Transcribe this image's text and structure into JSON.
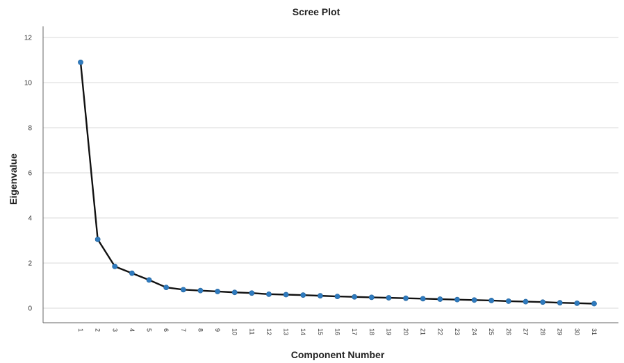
{
  "chart_data": {
    "type": "line",
    "title": "Scree Plot",
    "xlabel": "Component Number",
    "ylabel": "Eigenvalue",
    "x": [
      1,
      2,
      3,
      4,
      5,
      6,
      7,
      8,
      9,
      10,
      11,
      12,
      13,
      14,
      15,
      16,
      17,
      18,
      19,
      20,
      21,
      22,
      23,
      24,
      25,
      26,
      27,
      28,
      29,
      30,
      31
    ],
    "categories": [
      "1",
      "2",
      "3",
      "4",
      "5",
      "6",
      "7",
      "8",
      "9",
      "10",
      "11",
      "12",
      "13",
      "14",
      "15",
      "16",
      "17",
      "18",
      "19",
      "20",
      "21",
      "22",
      "23",
      "24",
      "25",
      "26",
      "27",
      "28",
      "29",
      "30",
      "31"
    ],
    "series": [
      {
        "values": [
          10.9,
          3.05,
          1.85,
          1.55,
          1.25,
          0.92,
          0.82,
          0.78,
          0.74,
          0.7,
          0.67,
          0.62,
          0.6,
          0.58,
          0.55,
          0.52,
          0.5,
          0.48,
          0.46,
          0.44,
          0.42,
          0.4,
          0.38,
          0.36,
          0.34,
          0.31,
          0.29,
          0.27,
          0.24,
          0.22,
          0.2
        ]
      }
    ],
    "ylim": [
      0,
      12
    ],
    "yticks": [
      0,
      2,
      4,
      6,
      8,
      10,
      12
    ],
    "grid": "horizontal",
    "colors": {
      "line": "#111111",
      "marker": "#2f7bbf",
      "grid": "#d9d9d9"
    }
  }
}
